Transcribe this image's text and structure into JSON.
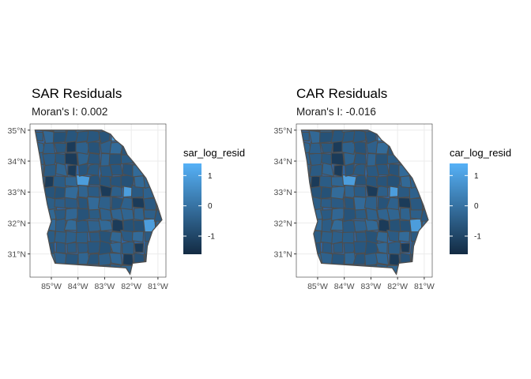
{
  "panels": [
    {
      "title": "SAR Residuals",
      "subtitle": "Moran's I: 0.002",
      "legend_title": "sar_log_resid",
      "legend_ticks": [
        "1",
        "0",
        "-1"
      ],
      "legend_tick_values": [
        1,
        0,
        -1
      ],
      "fill_range": [
        -1.6,
        1.4
      ]
    },
    {
      "title": "CAR Residuals",
      "subtitle": "Moran's I: -0.016",
      "legend_title": "car_log_resid",
      "legend_ticks": [
        "1",
        "0",
        "-1"
      ],
      "legend_tick_values": [
        1,
        0,
        -1
      ],
      "fill_range": [
        -1.6,
        1.4
      ]
    }
  ],
  "map": {
    "lat_ticks": [
      "35°N",
      "34°N",
      "33°N",
      "32°N",
      "31°N"
    ],
    "lat_values": [
      35,
      34,
      33,
      32,
      31
    ],
    "lon_ticks": [
      "85°W",
      "84°W",
      "83°W",
      "82°W",
      "81°W"
    ],
    "lon_values": [
      -85,
      -84,
      -83,
      -82,
      -81
    ],
    "lon_range": [
      -85.8,
      -80.7
    ],
    "lat_range": [
      30.25,
      35.2
    ],
    "grid": true,
    "panel_background": "#ffffff",
    "grid_color": "#ebebeb",
    "panel_border_color": "#333333",
    "county_border_color": "#4d4d4d"
  },
  "colors": {
    "low": "#132B43",
    "high": "#56B1F7",
    "base_county": "#2f64a0"
  }
}
